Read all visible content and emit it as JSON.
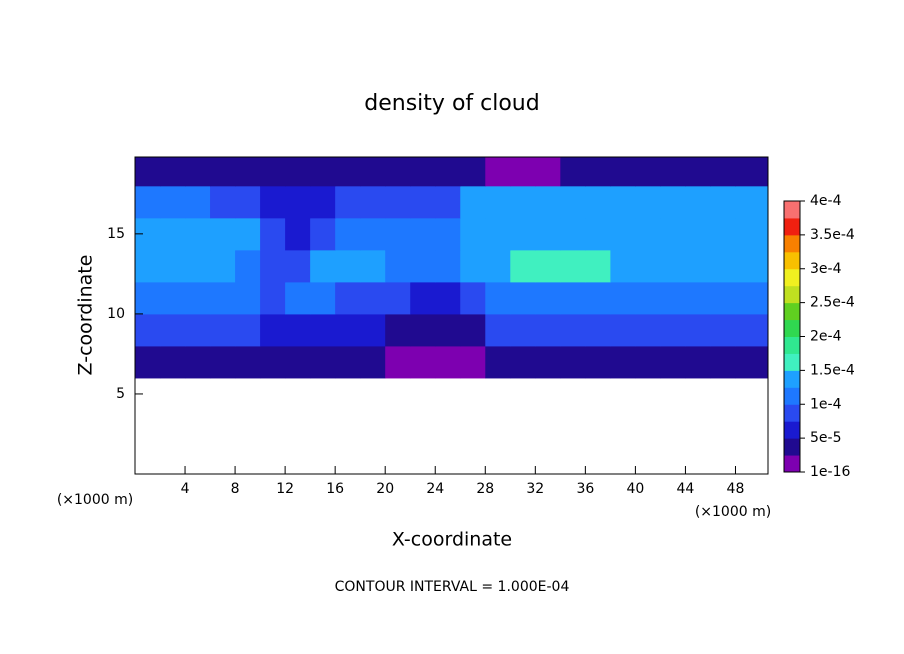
{
  "chart_data": {
    "type": "heatmap",
    "title": "density of cloud",
    "xlabel": "X-coordinate",
    "ylabel": "Z-coordinate",
    "xunit": "(×1000 m)",
    "yunit": "(×1000 m)",
    "note": "CONTOUR INTERVAL = 1.000E-04",
    "xlim": [
      0,
      50.6
    ],
    "ylim": [
      0,
      19.8
    ],
    "xticks": [
      4,
      8,
      12,
      16,
      20,
      24,
      28,
      32,
      36,
      40,
      44,
      48
    ],
    "yticks": [
      5,
      10,
      15
    ],
    "x": [
      1,
      3,
      5,
      7,
      9,
      11,
      13,
      15,
      17,
      19,
      21,
      23,
      25,
      27,
      29,
      31,
      33,
      35,
      37,
      39,
      41,
      43,
      45,
      47,
      49
    ],
    "z": [
      1,
      3,
      5,
      7,
      9,
      11,
      13,
      15,
      17,
      19
    ],
    "values": [
      [
        null,
        null,
        null,
        null,
        null,
        null,
        null,
        null,
        null,
        null,
        null,
        null,
        null,
        null,
        null,
        null,
        null,
        null,
        null,
        null,
        null,
        null,
        null,
        null,
        null
      ],
      [
        null,
        null,
        null,
        null,
        null,
        null,
        null,
        null,
        null,
        null,
        null,
        null,
        null,
        null,
        null,
        null,
        null,
        null,
        null,
        null,
        null,
        null,
        null,
        null,
        null
      ],
      [
        null,
        null,
        null,
        null,
        null,
        null,
        null,
        null,
        null,
        null,
        null,
        null,
        null,
        null,
        null,
        null,
        null,
        null,
        null,
        null,
        null,
        null,
        null,
        null,
        null
      ],
      [
        3e-05,
        3e-05,
        3e-05,
        3e-05,
        3e-05,
        3e-05,
        3e-05,
        3e-05,
        3e-05,
        3e-05,
        1e-05,
        1e-05,
        1e-05,
        1e-05,
        3e-05,
        3e-05,
        3e-05,
        3e-05,
        3e-05,
        3e-05,
        3e-05,
        3e-05,
        3e-05,
        3e-05,
        3e-05
      ],
      [
        9e-05,
        9e-05,
        9e-05,
        9e-05,
        9e-05,
        6e-05,
        7e-05,
        7e-05,
        7e-05,
        7e-05,
        5e-05,
        5e-05,
        5e-05,
        5e-05,
        9e-05,
        9e-05,
        9e-05,
        9e-05,
        9e-05,
        9e-05,
        9e-05,
        9e-05,
        9e-05,
        9e-05,
        9e-05
      ],
      [
        0.00012,
        0.00012,
        0.00012,
        0.00012,
        0.00012,
        8e-05,
        0.00011,
        0.00011,
        9e-05,
        9e-05,
        9e-05,
        6e-05,
        6e-05,
        9e-05,
        0.00012,
        0.00012,
        0.00012,
        0.00012,
        0.00012,
        0.00012,
        0.00012,
        0.00012,
        0.00012,
        0.00012,
        0.00012
      ],
      [
        0.00014,
        0.00014,
        0.00014,
        0.00014,
        0.00012,
        9e-05,
        8e-05,
        0.00013,
        0.00013,
        0.00013,
        0.00012,
        0.00012,
        0.00012,
        0.000145,
        0.000145,
        0.000155,
        0.000155,
        0.000155,
        0.000155,
        0.000145,
        0.000145,
        0.000145,
        0.000145,
        0.000145,
        0.000145
      ],
      [
        0.00015,
        0.00015,
        0.00015,
        0.00015,
        0.00013,
        9e-05,
        7e-05,
        8e-05,
        0.00012,
        0.00012,
        0.00012,
        0.00012,
        0.00012,
        0.00014,
        0.00014,
        0.00015,
        0.00015,
        0.00015,
        0.00014,
        0.00014,
        0.00014,
        0.00014,
        0.00014,
        0.00014,
        0.00014
      ],
      [
        0.000125,
        0.000125,
        0.000125,
        0.0001,
        0.0001,
        7e-05,
        7e-05,
        6e-05,
        8e-05,
        8e-05,
        9e-05,
        9e-05,
        9e-05,
        0.00013,
        0.00013,
        0.00013,
        0.00013,
        0.00013,
        0.00013,
        0.00013,
        0.00013,
        0.00013,
        0.00013,
        0.00013,
        0.00013
      ],
      [
        3e-05,
        3e-05,
        3e-05,
        4e-05,
        4e-05,
        4e-05,
        4e-05,
        4e-05,
        4e-05,
        4e-05,
        4e-05,
        4e-05,
        4e-05,
        4e-05,
        1e-05,
        1e-05,
        1e-05,
        4e-05,
        4e-05,
        4e-05,
        5e-05,
        5e-05,
        5e-05,
        5e-05,
        5e-05
      ]
    ],
    "colorbar": {
      "lim": [
        1e-16,
        0.0004
      ],
      "ticks": [
        {
          "value": 1e-16,
          "label": "1e-16"
        },
        {
          "value": 5e-05,
          "label": "5e-5"
        },
        {
          "value": 0.0001,
          "label": "1e-4"
        },
        {
          "value": 0.00015,
          "label": "1.5e-4"
        },
        {
          "value": 0.0002,
          "label": "2e-4"
        },
        {
          "value": 0.00025,
          "label": "2.5e-4"
        },
        {
          "value": 0.0003,
          "label": "3e-4"
        },
        {
          "value": 0.00035,
          "label": "3.5e-4"
        },
        {
          "value": 0.0004,
          "label": "4e-4"
        }
      ],
      "colors": [
        "#7d00b0",
        "#200a90",
        "#1a1ad0",
        "#2a4af0",
        "#1e78ff",
        "#1ea0ff",
        "#40f0c0",
        "#30e890",
        "#30d850",
        "#60d020",
        "#c0e020",
        "#f0f020",
        "#f8c000",
        "#f88000",
        "#f02010",
        "#f87070"
      ]
    }
  }
}
